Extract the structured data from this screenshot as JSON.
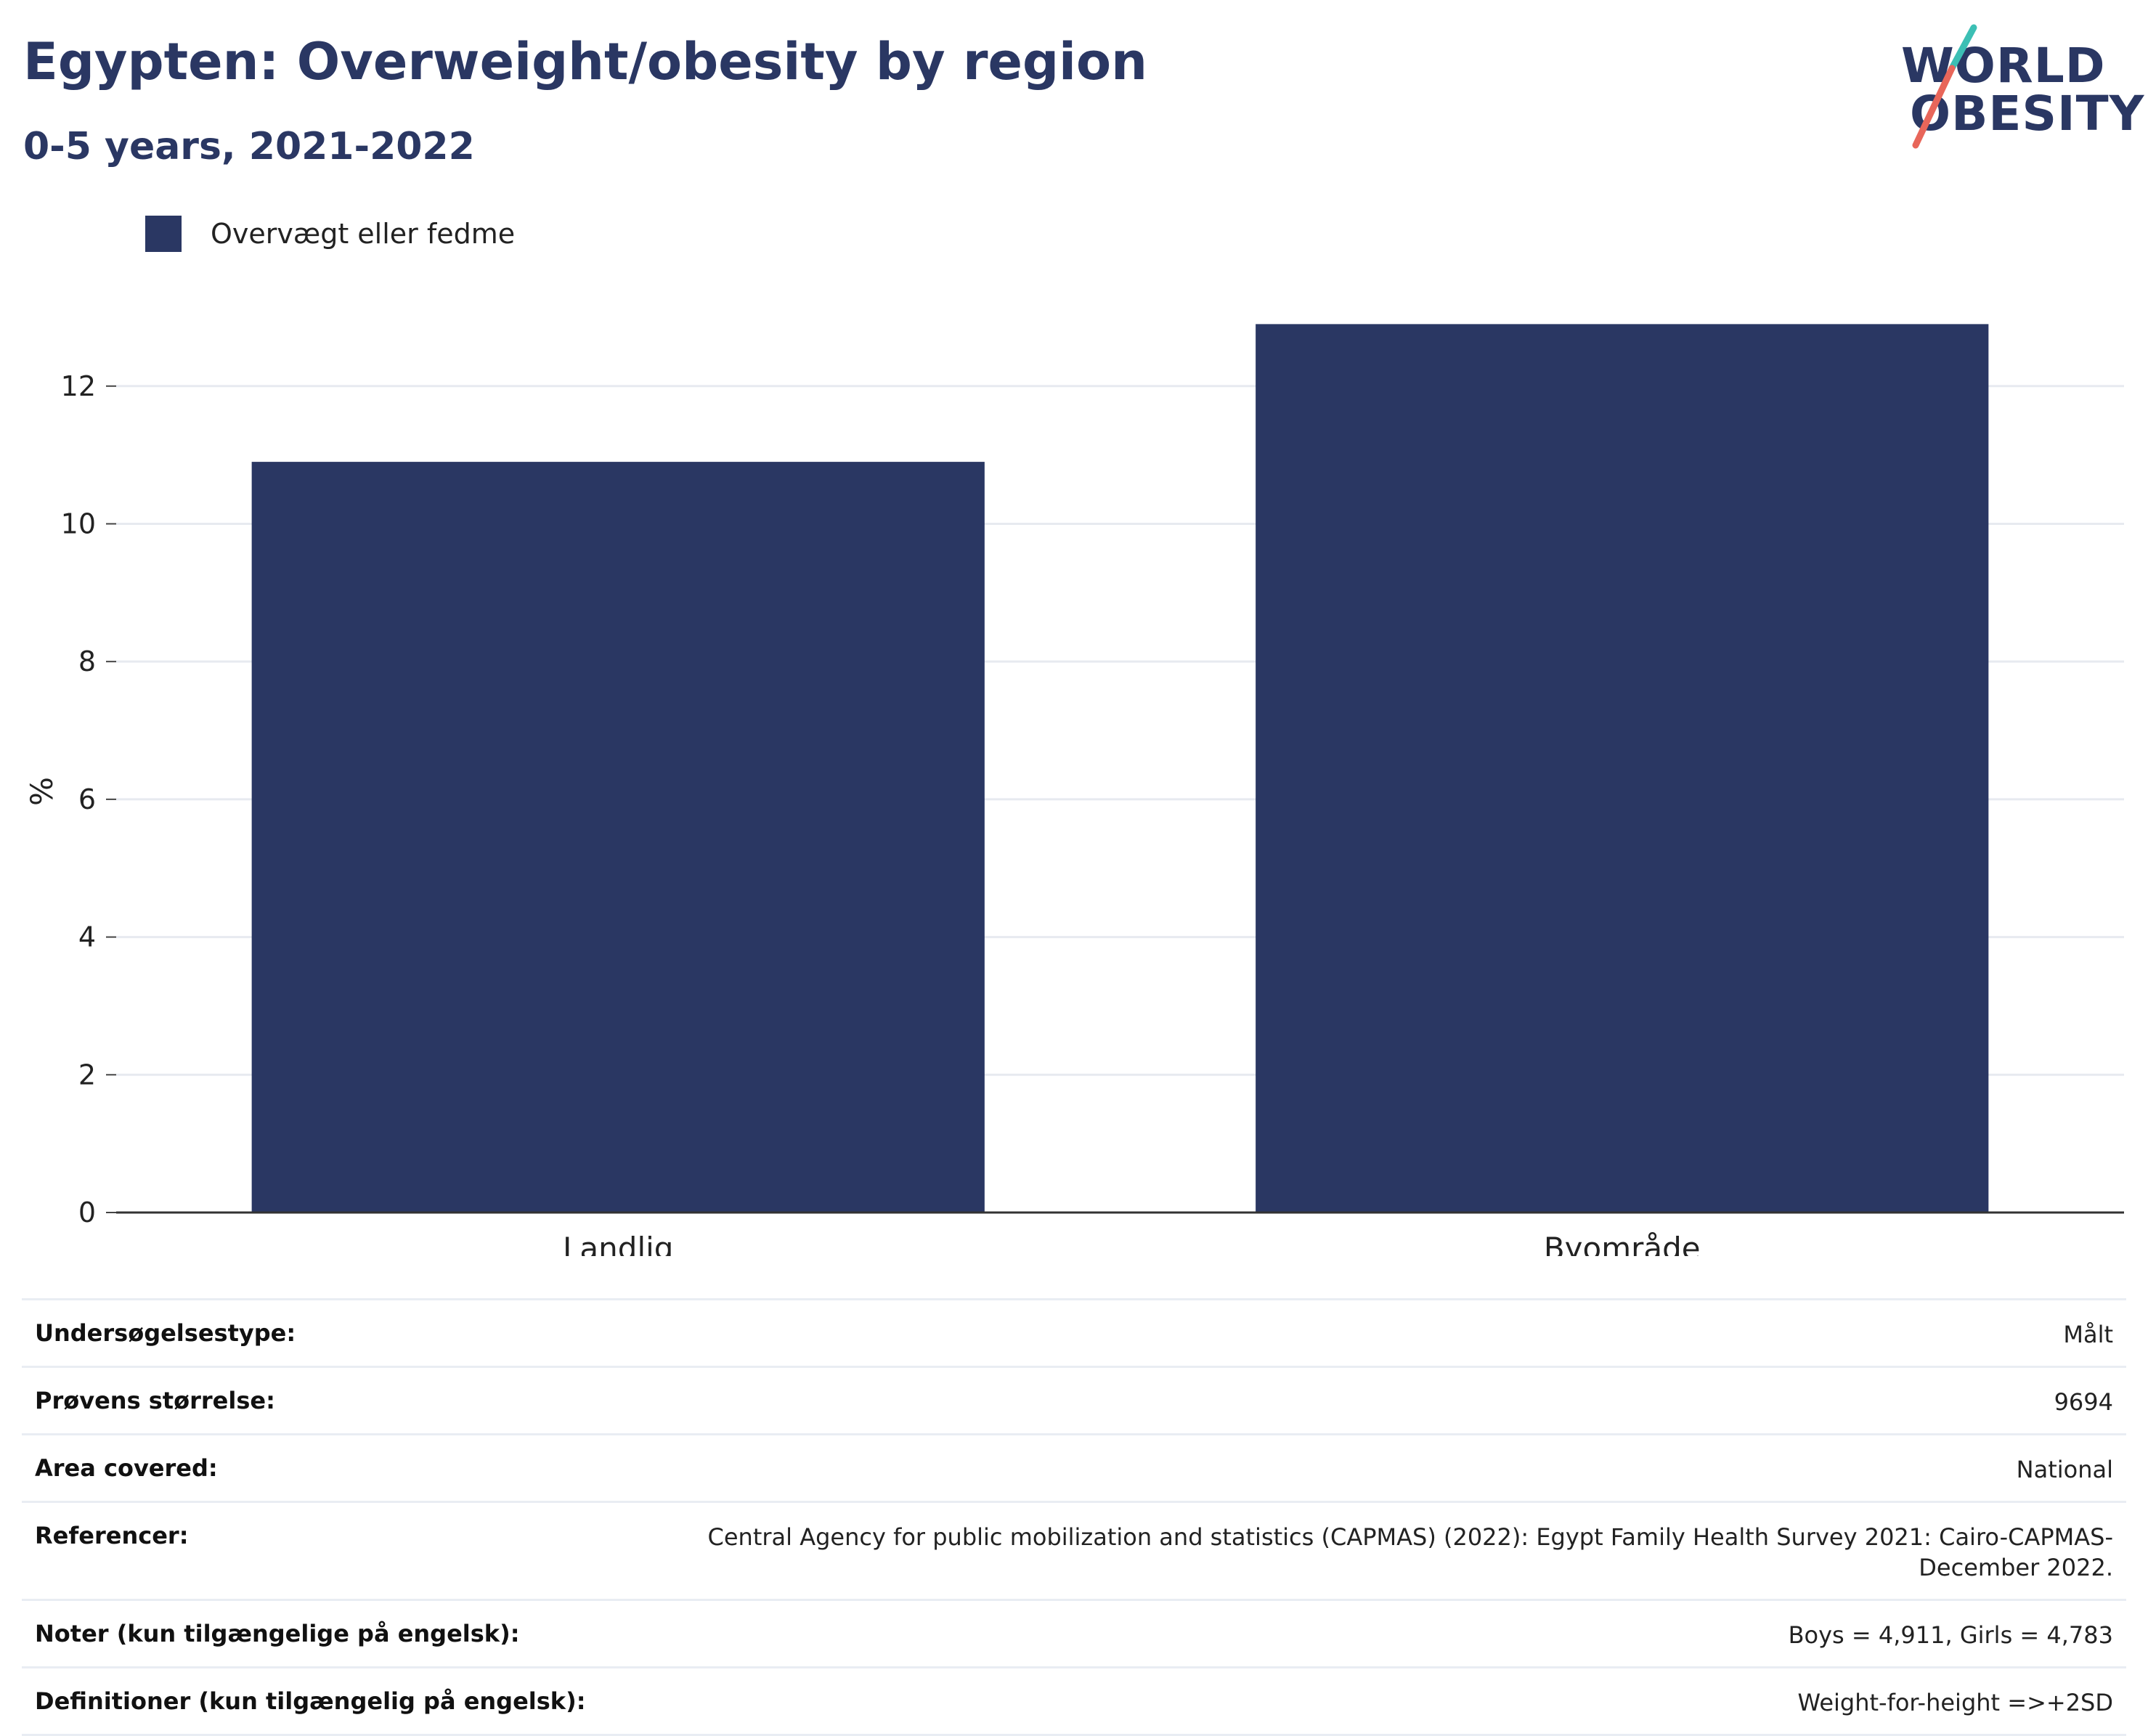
{
  "header": {
    "title": "Egypten: Overweight/obesity by region",
    "subtitle": "0-5 years, 2021-2022"
  },
  "logo": {
    "line1": "WORLD",
    "line2": "OBESITY",
    "accent_teal": "#3cbfb4",
    "accent_coral": "#e8665a"
  },
  "legend": {
    "label": "Overvægt eller fedme",
    "color": "#2a3763"
  },
  "chart_data": {
    "type": "bar",
    "categories": [
      "Landlig",
      "Byområde"
    ],
    "series": [
      {
        "name": "Overvægt eller fedme",
        "values": [
          10.9,
          12.9
        ],
        "color": "#2a3763"
      }
    ],
    "ylabel": "%",
    "xlabel": "",
    "ylim": [
      0,
      13.6
    ],
    "yticks": [
      0,
      2,
      4,
      6,
      8,
      10,
      12
    ],
    "grid": true,
    "legend_position": "top-left"
  },
  "info_table": [
    {
      "label": "Undersøgelsestype:",
      "value": "Målt"
    },
    {
      "label": "Prøvens størrelse:",
      "value": "9694"
    },
    {
      "label": "Area covered:",
      "value": "National"
    },
    {
      "label": "Referencer:",
      "value": "Central Agency for public mobilization and statistics (CAPMAS) (2022): Egypt Family Health Survey 2021: Cairo-CAPMAS-December 2022."
    },
    {
      "label": "Noter (kun tilgængelige på engelsk):",
      "value": "Boys = 4,911, Girls = 4,783"
    },
    {
      "label": "Definitioner (kun tilgængelig på engelsk):",
      "value": "Weight-for-height =>+2SD"
    }
  ]
}
